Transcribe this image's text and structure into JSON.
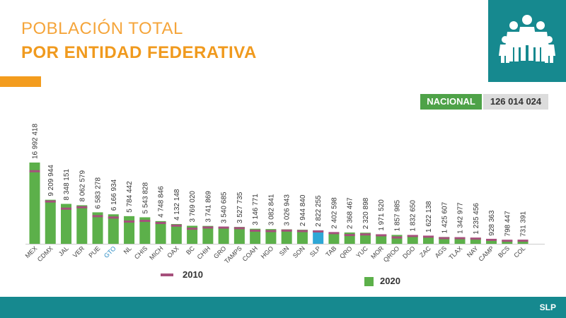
{
  "header": {
    "title_line1": "POBLACIÓN TOTAL",
    "title_line2": "POR ENTIDAD FEDERATIVA"
  },
  "logo": {
    "icon": "family-icon",
    "background": "#16898f"
  },
  "national": {
    "label": "NACIONAL",
    "value": "126 014 024"
  },
  "footer": {
    "state": "SLP"
  },
  "colors": {
    "bar_2020": "#5cb04a",
    "bar_highlight": "#2ea7d6",
    "marker_2010": "#a6507c",
    "accent_orange": "#f39c1e",
    "teal": "#16898f"
  },
  "chart_data": {
    "type": "bar",
    "categories": [
      "MEX",
      "CDMX",
      "JAL",
      "VER",
      "PUE",
      "GTO",
      "NL",
      "CHIS",
      "MICH",
      "OAX",
      "BC",
      "CHIH",
      "GRO",
      "TAMPS",
      "COAH",
      "HGO",
      "SIN",
      "SON",
      "SLP",
      "TAB",
      "QRO",
      "YUC",
      "MOR",
      "QROO",
      "DGO",
      "ZAC",
      "AGS",
      "TLAX",
      "NAY",
      "CAMP",
      "BCS",
      "COL"
    ],
    "series": [
      {
        "name": "2020",
        "values": [
          16992418,
          9209944,
          8348151,
          8062579,
          6583278,
          6166934,
          5784442,
          5543828,
          4748846,
          4132148,
          3769020,
          3741869,
          3540685,
          3527735,
          3146771,
          3082841,
          3026943,
          2944840,
          2822255,
          2402598,
          2368467,
          2320898,
          1971520,
          1857985,
          1832650,
          1622138,
          1425607,
          1342977,
          1235456,
          928363,
          798447,
          731391
        ],
        "labels": [
          "16 992 418",
          "9 209 944",
          "8 348 151",
          "8 062 579",
          "6 583 278",
          "6 166 934",
          "5 784 442",
          "5 543 828",
          "4 748 846",
          "4 132 148",
          "3 769 020",
          "3 741 869",
          "3 540 685",
          "3 527 735",
          "3 146 771",
          "3 082 841",
          "3 026 943",
          "2 944 840",
          "2 822 255",
          "2 402 598",
          "2 368 467",
          "2 320 898",
          "1 971 520",
          "1 857 985",
          "1 832 650",
          "1 622 138",
          "1 425 607",
          "1 342 977",
          "1 235 456",
          "928 363",
          "798 447",
          "731 391"
        ]
      },
      {
        "name": "2010",
        "values": [
          15175862,
          8851080,
          7350682,
          7643194,
          5779829,
          5486372,
          4653458,
          4796580,
          4351037,
          3801962,
          3155070,
          3406465,
          3388768,
          3268554,
          2748391,
          2665018,
          2767761,
          2662480,
          2585518,
          2238603,
          1827937,
          1955577,
          1777227,
          1325578,
          1632934,
          1490668,
          1184996,
          1169936,
          1084979,
          822441,
          637026,
          650555
        ]
      }
    ],
    "highlight": "SLP",
    "legend": [
      "2010",
      "2020"
    ],
    "ylim": [
      0,
      17000000
    ]
  }
}
